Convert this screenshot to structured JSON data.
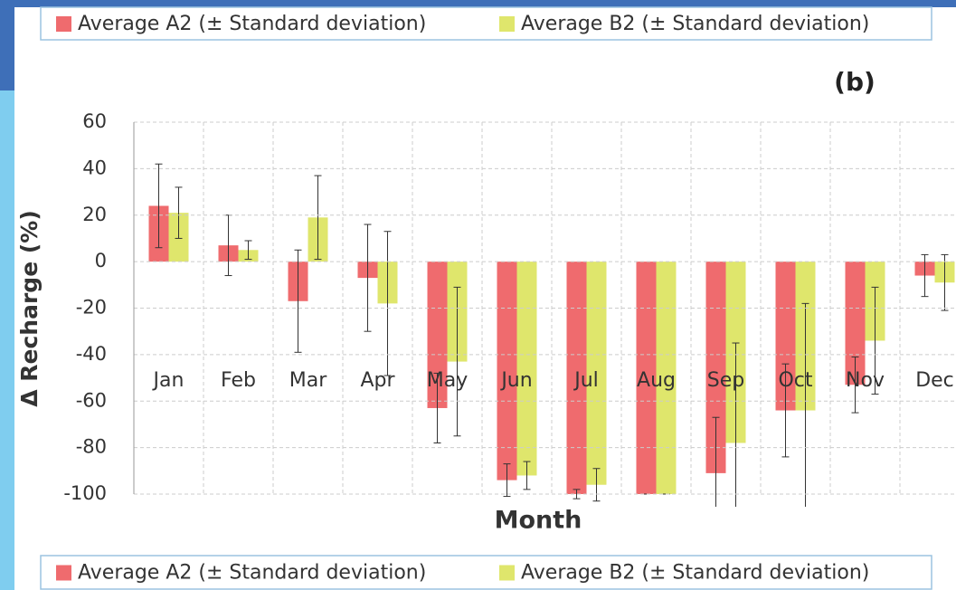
{
  "chart_data": {
    "type": "bar",
    "title": "(b)",
    "x_label": "Month",
    "y_label": "Δ Recharge (%)",
    "categories": [
      "Jan",
      "Feb",
      "Mar",
      "Apr",
      "May",
      "Jun",
      "Jul",
      "Aug",
      "Sep",
      "Oct",
      "Nov",
      "Dec"
    ],
    "series": [
      {
        "name": "Average A2 (± Standard deviation)",
        "color": "#ef6b6e",
        "values": [
          24,
          7,
          -17,
          -7,
          -63,
          -94,
          -100,
          -100,
          -91,
          -64,
          -53,
          -6
        ],
        "errors": [
          18,
          13,
          22,
          23,
          15,
          7,
          2,
          0,
          24,
          20,
          12,
          9
        ]
      },
      {
        "name": "Average B2 (± Standard deviation)",
        "color": "#dfe66c",
        "values": [
          21,
          5,
          19,
          -18,
          -43,
          -92,
          -96,
          -100,
          -78,
          -64,
          -34,
          -9
        ],
        "errors": [
          11,
          4,
          18,
          31,
          32,
          6,
          7,
          0,
          43,
          46,
          23,
          12
        ]
      }
    ],
    "ylim": [
      -100,
      60
    ],
    "yticks": [
      -100,
      -80,
      -60,
      -40,
      -20,
      0,
      20,
      40,
      60
    ],
    "grid": true
  }
}
